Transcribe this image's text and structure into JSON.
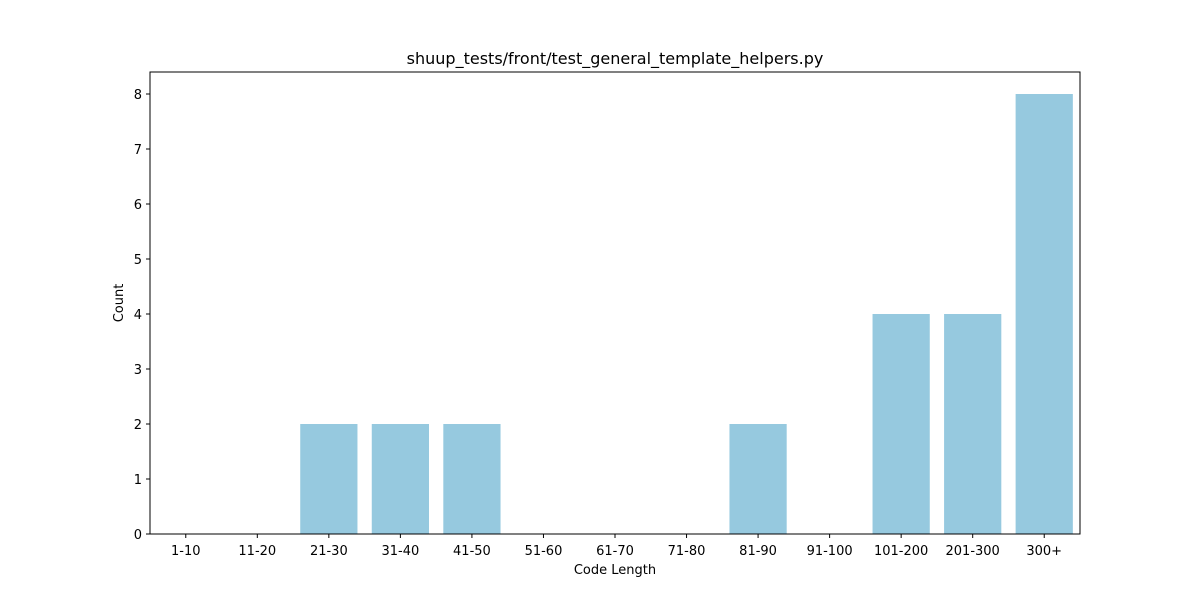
{
  "chart_data": {
    "type": "bar",
    "title": "shuup_tests/front/test_general_template_helpers.py",
    "xlabel": "Code Length",
    "ylabel": "Count",
    "categories": [
      "1-10",
      "11-20",
      "21-30",
      "31-40",
      "41-50",
      "51-60",
      "61-70",
      "71-80",
      "81-90",
      "91-100",
      "101-200",
      "201-300",
      "300+"
    ],
    "values": [
      0,
      0,
      2,
      2,
      2,
      0,
      0,
      0,
      2,
      0,
      4,
      4,
      8
    ],
    "ylim": [
      0,
      8.4
    ],
    "yticks": [
      0,
      1,
      2,
      3,
      4,
      5,
      6,
      7,
      8
    ],
    "bar_color": "#96c9df",
    "grid": false,
    "legend": "none"
  }
}
